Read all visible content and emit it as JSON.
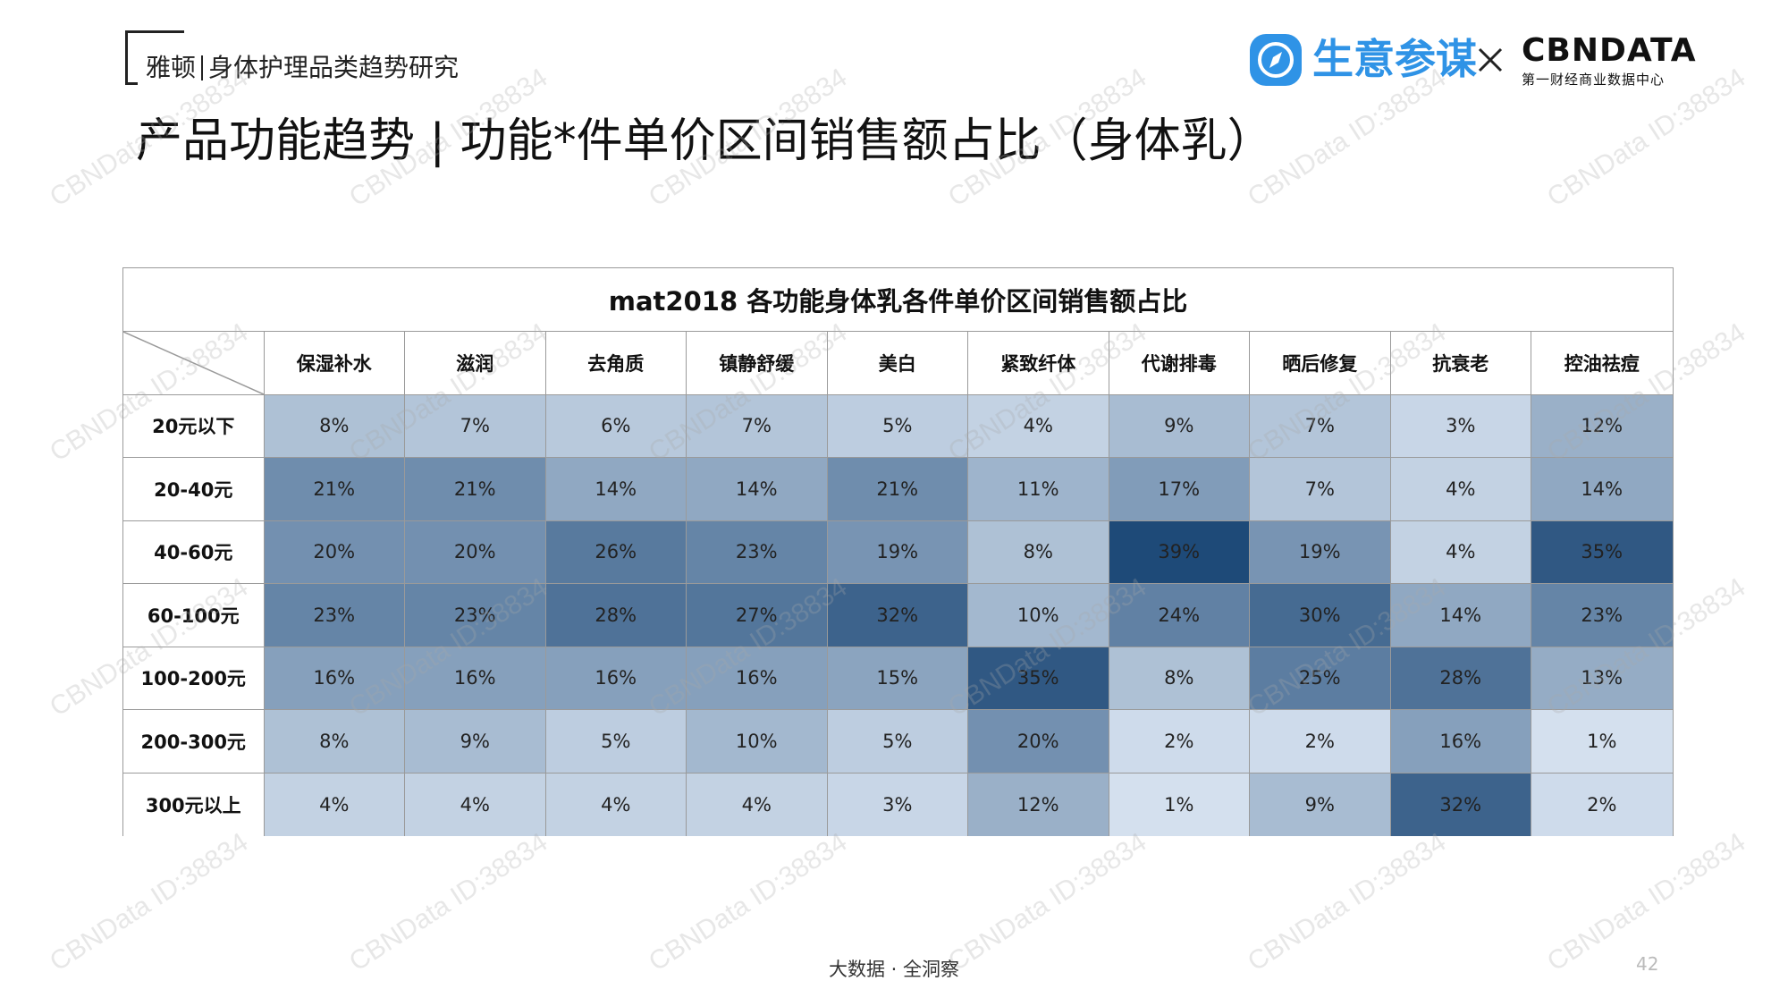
{
  "header": {
    "brand": "雅顿",
    "brand_sub": "身体护理品类趋势研究",
    "title": "产品功能趋势 | 功能*件单价区间销售额占比（身体乳）"
  },
  "logos": {
    "logo1_text": "生意参谋",
    "logo1_color": "#2f93e6",
    "logo2_main": "CBNDATA",
    "logo2_sub": "第一财经商业数据中心"
  },
  "watermark_text": "CBNData ID:38834",
  "footer": {
    "text": "大数据 · 全洞察",
    "page": "42"
  },
  "chart_data": {
    "type": "heatmap",
    "title": "mat2018 各功能身体乳各件单价区间销售额占比",
    "columns": [
      "保湿补水",
      "滋润",
      "去角质",
      "镇静舒缓",
      "美白",
      "紧致纤体",
      "代谢排毒",
      "晒后修复",
      "抗衰老",
      "控油祛痘"
    ],
    "rows": [
      "20元以下",
      "20-40元",
      "40-60元",
      "60-100元",
      "100-200元",
      "200-300元",
      "300元以上"
    ],
    "values": [
      [
        8,
        7,
        6,
        7,
        5,
        4,
        9,
        7,
        3,
        12
      ],
      [
        21,
        21,
        14,
        14,
        21,
        11,
        17,
        7,
        4,
        14
      ],
      [
        20,
        20,
        26,
        23,
        19,
        8,
        39,
        19,
        4,
        35
      ],
      [
        23,
        23,
        28,
        27,
        32,
        10,
        24,
        30,
        14,
        23
      ],
      [
        16,
        16,
        16,
        16,
        15,
        35,
        8,
        25,
        28,
        13
      ],
      [
        8,
        9,
        5,
        10,
        5,
        20,
        2,
        2,
        16,
        1
      ],
      [
        4,
        4,
        4,
        4,
        3,
        12,
        1,
        9,
        32,
        2
      ]
    ],
    "unit": "%",
    "color_low": "#dbe6f3",
    "color_high": "#1e4a78"
  }
}
